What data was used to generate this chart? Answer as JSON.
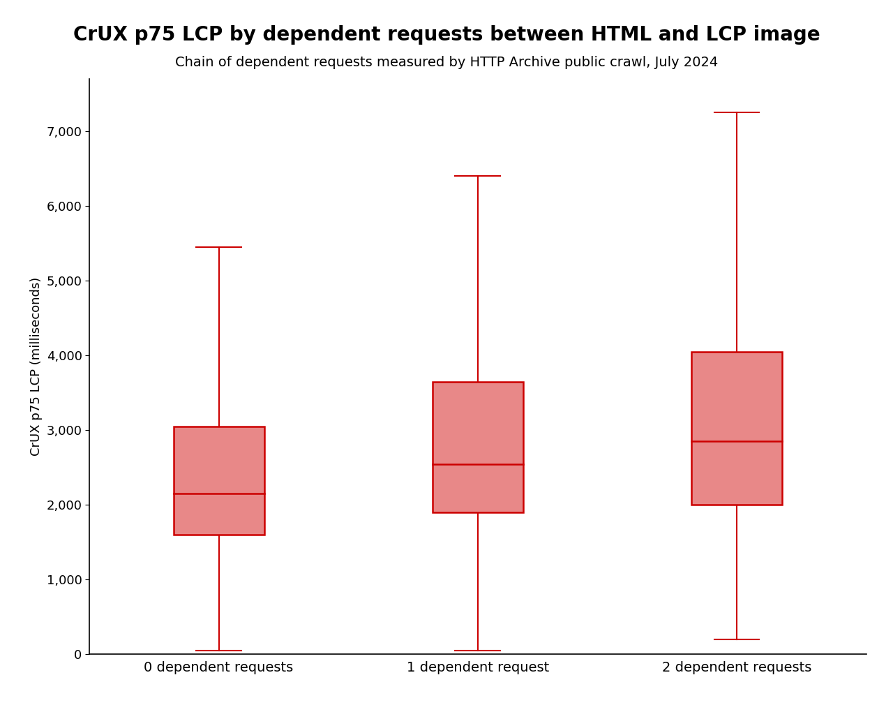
{
  "title": "CrUX p75 LCP by dependent requests between HTML and LCP image",
  "subtitle": "Chain of dependent requests measured by HTTP Archive public crawl, July 2024",
  "ylabel": "CrUX p75 LCP (milliseconds)",
  "categories": [
    "0 dependent requests",
    "1 dependent request",
    "2 dependent requests"
  ],
  "boxes": [
    {
      "whisker_low": 50,
      "q1": 1600,
      "median": 2150,
      "q3": 3050,
      "whisker_high": 5450
    },
    {
      "whisker_low": 50,
      "q1": 1900,
      "median": 2540,
      "q3": 3650,
      "whisker_high": 6400
    },
    {
      "whisker_low": 200,
      "q1": 2000,
      "median": 2850,
      "q3": 4050,
      "whisker_high": 7250
    }
  ],
  "box_color": "#e88888",
  "box_edge_color": "#cc0000",
  "median_color": "#cc0000",
  "whisker_color": "#cc0000",
  "cap_color": "#cc0000",
  "ylim": [
    0,
    7700
  ],
  "yticks": [
    0,
    1000,
    2000,
    3000,
    4000,
    5000,
    6000,
    7000
  ],
  "background_color": "#ffffff",
  "title_fontsize": 20,
  "subtitle_fontsize": 14,
  "ylabel_fontsize": 13,
  "tick_fontsize": 13,
  "xtick_fontsize": 14,
  "box_width": 0.35,
  "cap_ratio": 0.25
}
